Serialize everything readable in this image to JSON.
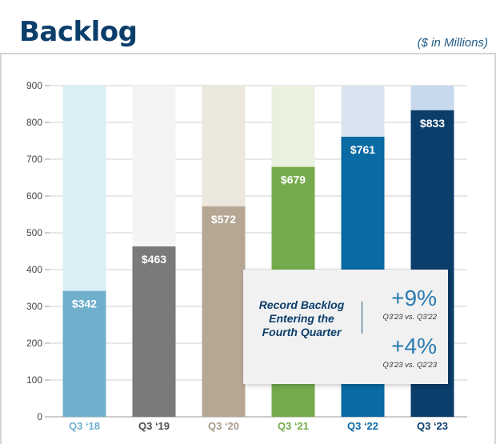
{
  "header": {
    "title": "Backlog",
    "units": "($ in Millions)"
  },
  "callout": {
    "lines": [
      "Record Backlog",
      "Entering the",
      "Fourth Quarter"
    ],
    "stats": [
      {
        "value": "+9%",
        "note": "Q3'23 vs. Q3'22"
      },
      {
        "value": "+4%",
        "note": "Q3'23 vs. Q2'23"
      }
    ]
  },
  "chart_data": {
    "type": "bar",
    "title": "Backlog",
    "ylabel": "($ in Millions)",
    "xlabel": "",
    "ylim": [
      0,
      900
    ],
    "yticks": [
      0,
      100,
      200,
      300,
      400,
      500,
      600,
      700,
      800,
      900
    ],
    "grid": true,
    "categories": [
      "Q3 ‘18",
      "Q3 ‘19",
      "Q3 ‘20",
      "Q3 ‘21",
      "Q3 ‘22",
      "Q3 ‘23"
    ],
    "values": [
      342,
      463,
      572,
      679,
      761,
      833
    ],
    "data_labels": [
      "$342",
      "$463",
      "$572",
      "$679",
      "$761",
      "$833"
    ],
    "colors": [
      "#6fb0cc",
      "#7a7a7a",
      "#b6a795",
      "#74ab4c",
      "#0a6aa3",
      "#0c3e6b"
    ],
    "background_colors": [
      "#daeef5",
      "#f4f4f4",
      "#ebe7dd",
      "#e9f1df",
      "#d9e4f0",
      "#c8d9ee"
    ],
    "label_colors": [
      "#6fb0cc",
      "#4f4f4f",
      "#a89a8a",
      "#74ab4c",
      "#0a6aa3",
      "#0c3e6b"
    ]
  }
}
